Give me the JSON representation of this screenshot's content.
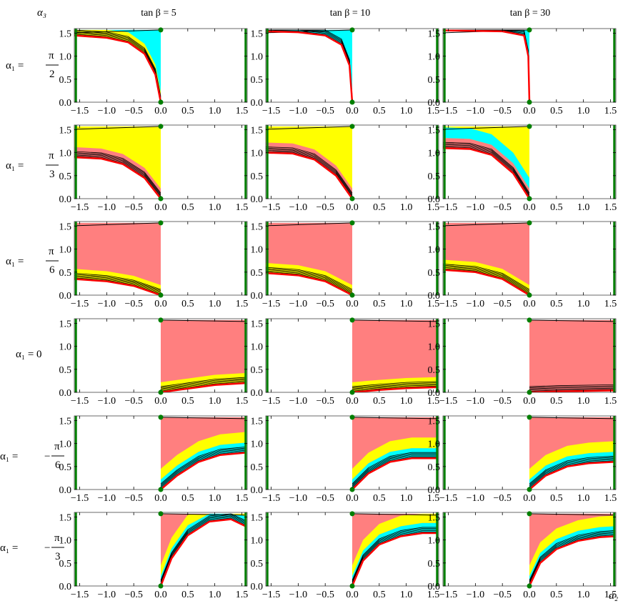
{
  "colors": {
    "cyan": "#00ffff",
    "yellow": "#ffff00",
    "salmon": "#ff7f7f",
    "red": "#ff0000",
    "green": "#007f00",
    "black": "#000000"
  },
  "axes": {
    "xlabel": "α₂",
    "ylabel": "α₃"
  },
  "columns": [
    {
      "label": "tan β = 5"
    },
    {
      "label": "tan β = 10"
    },
    {
      "label": "tan β = 30"
    }
  ],
  "rows": [
    {
      "label_lhs": "α₁ =",
      "label_num": "π",
      "label_den": "2",
      "sign": "",
      "xrange": "negative"
    },
    {
      "label_lhs": "α₁ =",
      "label_num": "π",
      "label_den": "3",
      "sign": "",
      "xrange": "negative"
    },
    {
      "label_lhs": "α₁ =",
      "label_num": "π",
      "label_den": "6",
      "sign": "",
      "xrange": "negative"
    },
    {
      "label_lhs": "α₁ = 0",
      "label_num": "",
      "label_den": "",
      "sign": "",
      "xrange": "positive"
    },
    {
      "label_lhs": "α₁ =",
      "label_num": "π",
      "label_den": "6",
      "sign": "−",
      "xrange": "positive"
    },
    {
      "label_lhs": "α₁ =",
      "label_num": "π",
      "label_den": "3",
      "sign": "−",
      "xrange": "positive"
    }
  ],
  "chart_data": {
    "type": "area",
    "layout": "6x3 grid of region plots",
    "xlim": [
      -1.6,
      1.6
    ],
    "ylim": [
      0,
      1.6
    ],
    "x_ticks": [
      "−1.5",
      "−1.0",
      "−0.5",
      "0.0",
      "0.5",
      "1.0",
      "1.5"
    ],
    "x_tick_values": [
      -1.5,
      -1.0,
      -0.5,
      0.0,
      0.5,
      1.0,
      1.5
    ],
    "y_ticks": [
      "0.0",
      "0.5",
      "1.0",
      "1.5"
    ],
    "y_tick_values": [
      0.0,
      0.5,
      1.0,
      1.5
    ],
    "green_lines_x": [
      -1.5708,
      1.5708
    ],
    "green_points": [
      [
        0,
        0
      ],
      [
        0,
        1.5708
      ]
    ],
    "panels": [
      [
        {
          "boundary": [
            [
              0,
              0
            ],
            [
              -0.1,
              0.6
            ],
            [
              -0.3,
              1.05
            ],
            [
              -0.6,
              1.3
            ],
            [
              -1.0,
              1.4
            ],
            [
              -1.6,
              1.45
            ]
          ],
          "fill": "cyan+yellow"
        },
        {
          "boundary": [
            [
              0,
              0
            ],
            [
              -0.05,
              0.8
            ],
            [
              -0.2,
              1.25
            ],
            [
              -0.5,
              1.45
            ],
            [
              -1.0,
              1.52
            ],
            [
              -1.6,
              1.54
            ]
          ],
          "fill": "cyan"
        },
        {
          "boundary": [
            [
              0,
              0
            ],
            [
              -0.02,
              1.0
            ],
            [
              -0.1,
              1.45
            ],
            [
              -0.5,
              1.54
            ],
            [
              -1.6,
              1.56
            ]
          ],
          "fill": "cyan"
        }
      ],
      [
        {
          "boundary": [
            [
              0,
              0
            ],
            [
              -0.3,
              0.45
            ],
            [
              -0.7,
              0.75
            ],
            [
              -1.1,
              0.87
            ],
            [
              -1.6,
              0.9
            ]
          ],
          "fill": "yellow+salmon"
        },
        {
          "boundary": [
            [
              0,
              0
            ],
            [
              -0.3,
              0.5
            ],
            [
              -0.7,
              0.85
            ],
            [
              -1.1,
              0.98
            ],
            [
              -1.6,
              1.0
            ]
          ],
          "fill": "yellow+salmon"
        },
        {
          "boundary": [
            [
              0,
              0
            ],
            [
              -0.3,
              0.55
            ],
            [
              -0.7,
              0.95
            ],
            [
              -1.1,
              1.08
            ],
            [
              -1.6,
              1.1
            ]
          ],
          "fill": "yellow+salmon+cyan"
        }
      ],
      [
        {
          "boundary": [
            [
              0,
              0
            ],
            [
              -0.5,
              0.2
            ],
            [
              -1.0,
              0.3
            ],
            [
              -1.6,
              0.35
            ]
          ],
          "fill": "salmon+yellow"
        },
        {
          "boundary": [
            [
              0,
              0
            ],
            [
              -0.5,
              0.3
            ],
            [
              -1.0,
              0.43
            ],
            [
              -1.6,
              0.48
            ]
          ],
          "fill": "salmon+yellow"
        },
        {
          "boundary": [
            [
              0,
              0
            ],
            [
              -0.5,
              0.35
            ],
            [
              -1.0,
              0.5
            ],
            [
              -1.6,
              0.55
            ]
          ],
          "fill": "salmon+yellow"
        }
      ],
      [
        {
          "boundary": [
            [
              0,
              0
            ],
            [
              0.5,
              0.08
            ],
            [
              1.0,
              0.16
            ],
            [
              1.57,
              0.2
            ]
          ],
          "fill": "salmon+yellow"
        },
        {
          "boundary": [
            [
              0,
              0
            ],
            [
              0.5,
              0.05
            ],
            [
              1.0,
              0.09
            ],
            [
              1.57,
              0.11
            ]
          ],
          "fill": "salmon+yellow"
        },
        {
          "boundary": [
            [
              0,
              0
            ],
            [
              0.5,
              0.02
            ],
            [
              1.0,
              0.03
            ],
            [
              1.57,
              0.04
            ]
          ],
          "fill": "salmon"
        }
      ],
      [
        {
          "boundary": [
            [
              0,
              0
            ],
            [
              0.3,
              0.3
            ],
            [
              0.7,
              0.6
            ],
            [
              1.1,
              0.75
            ],
            [
              1.57,
              0.8
            ]
          ],
          "fill": "salmon+cyan+yellow"
        },
        {
          "boundary": [
            [
              0,
              0
            ],
            [
              0.3,
              0.35
            ],
            [
              0.7,
              0.6
            ],
            [
              1.1,
              0.68
            ],
            [
              1.57,
              0.68
            ]
          ],
          "fill": "salmon+cyan+yellow"
        },
        {
          "boundary": [
            [
              0,
              0
            ],
            [
              0.3,
              0.3
            ],
            [
              0.7,
              0.5
            ],
            [
              1.1,
              0.57
            ],
            [
              1.57,
              0.6
            ]
          ],
          "fill": "salmon+cyan+yellow"
        }
      ],
      [
        {
          "boundary": [
            [
              0,
              0
            ],
            [
              0.2,
              0.6
            ],
            [
              0.5,
              1.1
            ],
            [
              0.9,
              1.4
            ],
            [
              1.3,
              1.45
            ],
            [
              1.57,
              1.3
            ]
          ],
          "fill": "salmon+cyan+yellow"
        },
        {
          "boundary": [
            [
              0,
              0
            ],
            [
              0.2,
              0.55
            ],
            [
              0.5,
              0.9
            ],
            [
              0.9,
              1.08
            ],
            [
              1.3,
              1.15
            ],
            [
              1.57,
              1.15
            ]
          ],
          "fill": "salmon+cyan+yellow"
        },
        {
          "boundary": [
            [
              0,
              0
            ],
            [
              0.2,
              0.5
            ],
            [
              0.5,
              0.8
            ],
            [
              0.9,
              0.98
            ],
            [
              1.3,
              1.06
            ],
            [
              1.57,
              1.08
            ]
          ],
          "fill": "salmon+cyan+yellow"
        }
      ]
    ]
  }
}
